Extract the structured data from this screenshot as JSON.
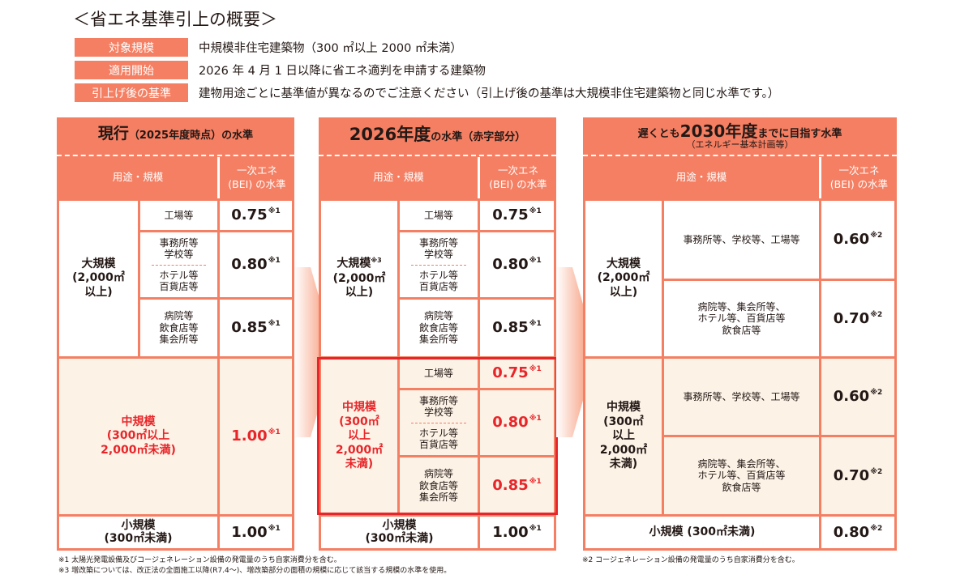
{
  "title": "＜省エネ基準引上の概要＞",
  "legend": [
    {
      "label": "対象規模",
      "text": "中規模非住宅建築物（300 ㎡以上 2000 ㎡未満）"
    },
    {
      "label": "適用開始",
      "text": "2026 年 4 月 1 日以降に省エネ適判を申請する建築物"
    },
    {
      "label": "引上げ後の基準",
      "text": "建物用途ごとに基準値が異なるのでご注意ください（引上げ後の基準は大規模非住宅建築物と同じ水準です。）"
    }
  ],
  "colors": {
    "accent": "#f47f63",
    "highlight": "#e8262a",
    "cream": "#fdf2e6"
  },
  "header": {
    "use": "用途・規模",
    "bei1": "一次エネ",
    "bei2": "(BEI) の水準"
  },
  "p1": {
    "title_main": "現行",
    "title_sub": "（2025年度時点）の水準",
    "large": "大規模\n(2,000㎡\n以上)",
    "mid": "中規模\n(300㎡以上\n2,000㎡未満)",
    "small": "小規模\n(300㎡未満)",
    "r1": "工場等",
    "r2a": "事務所等\n学校等",
    "r2b": "ホテル等\n百貨店等",
    "r3": "病院等\n飲食店等\n集会所等",
    "v1": "0.75",
    "v2": "0.80",
    "v3": "0.85",
    "vmid": "1.00",
    "vsmall": "1.00",
    "n1": "※1"
  },
  "p2": {
    "title_main": "2026年度",
    "title_sub": "の水準（赤字部分）",
    "large": "大規模",
    "large_note": "※3",
    "large2": "(2,000㎡\n以上)",
    "mid": "中規模\n(300㎡\n以上\n2,000㎡\n未満)",
    "small": "小規模\n(300㎡未満)",
    "r1": "工場等",
    "r2a": "事務所等\n学校等",
    "r2b": "ホテル等\n百貨店等",
    "r3": "病院等\n飲食店等\n集会所等",
    "v1": "0.75",
    "v2": "0.80",
    "v3": "0.85",
    "m1": "0.75",
    "m2": "0.80",
    "m3": "0.85",
    "vsmall": "1.00",
    "n1": "※1"
  },
  "p3": {
    "title_pre": "遅くとも",
    "title_main": "2030年度",
    "title_post": "までに目指す水準",
    "title_sub": "（エネルギー基本計画等）",
    "large": "大規模\n(2,000㎡\n以上)",
    "mid": "中規模\n(300㎡\n以上\n2,000㎡\n未満)",
    "small": "小規模 (300㎡未満)",
    "ra": "事務所等、学校等、工場等",
    "rb": "病院等、集会所等、\nホテル等、百貨店等\n飲食店等",
    "va": "0.60",
    "vb": "0.70",
    "vsmall": "0.80",
    "n2": "※2"
  },
  "footnotes": {
    "f1": "※1 太陽光発電設備及びコージェネレーション設備の発電量のうち自家消費分を含む。",
    "f3": "※3 増改築については、改正法の全面施工以降(R7.4～)、増改築部分の面積の規模に応じて該当する規模の水準を使用。",
    "f2": "※2 コージェネレーション設備の発電量のうち自家消費分を含む。"
  }
}
